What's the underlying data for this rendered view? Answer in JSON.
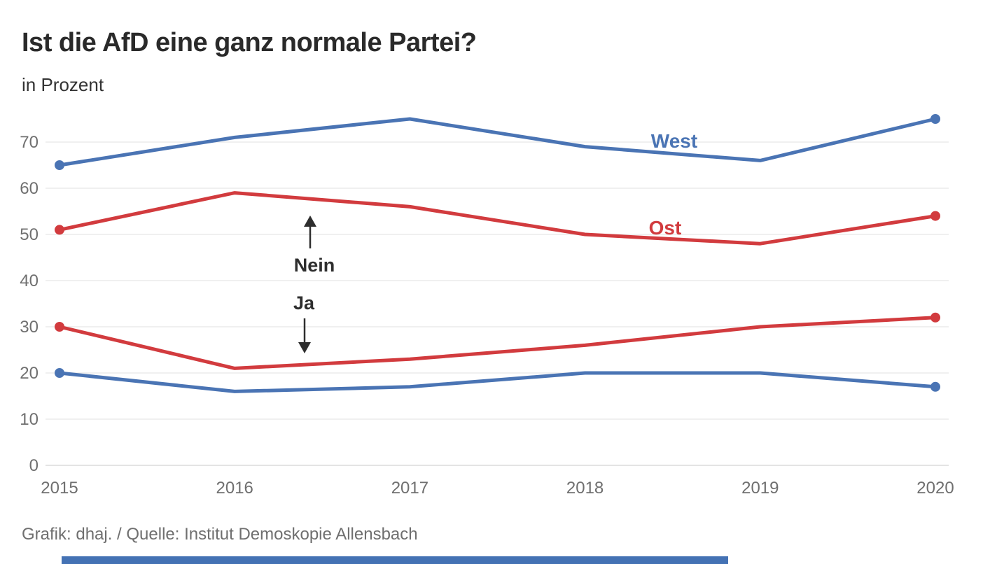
{
  "header": {
    "title": "Ist die AfD eine ganz normale Partei?",
    "subtitle": "in Prozent"
  },
  "footer": {
    "credit": "Grafik: dhaj. / Quelle: Institut Demoskopie Allensbach"
  },
  "colors": {
    "west": "#4a74b4",
    "ost": "#d23b3e",
    "grid": "#ebebeb",
    "axis_line": "#dcdcdc",
    "axis_text": "#6f6f6f",
    "annotation": "#2e2e2e",
    "title_text": "#2a2a2a",
    "footer_text": "#6f6f6f",
    "progress_bar": "#4472b4"
  },
  "chart_data": {
    "type": "line",
    "x": [
      2015,
      2016,
      2017,
      2018,
      2019,
      2020
    ],
    "series": [
      {
        "name": "West",
        "answer": "Nein",
        "color_key": "west",
        "values": [
          65,
          71,
          75,
          69,
          66,
          75
        ]
      },
      {
        "name": "Ost",
        "answer": "Nein",
        "color_key": "ost",
        "values": [
          51,
          59,
          56,
          50,
          48,
          54
        ]
      },
      {
        "name": "Ost",
        "answer": "Ja",
        "color_key": "ost",
        "values": [
          30,
          21,
          23,
          26,
          30,
          32
        ]
      },
      {
        "name": "West",
        "answer": "Ja",
        "color_key": "west",
        "values": [
          20,
          16,
          17,
          20,
          20,
          17
        ]
      }
    ],
    "series_labels": [
      {
        "text": "West",
        "color_key": "west"
      },
      {
        "text": "Ost",
        "color_key": "ost"
      }
    ],
    "annotations": [
      {
        "text": "Nein",
        "arrow": "up"
      },
      {
        "text": "Ja",
        "arrow": "down"
      }
    ],
    "title": "Ist die AfD eine ganz normale Partei?",
    "ylabel": "in Prozent",
    "xlabel": "",
    "ylim": [
      0,
      78
    ],
    "yticks": [
      0,
      10,
      20,
      30,
      40,
      50,
      60,
      70
    ],
    "grid": true,
    "legend_position": "inline-right"
  }
}
